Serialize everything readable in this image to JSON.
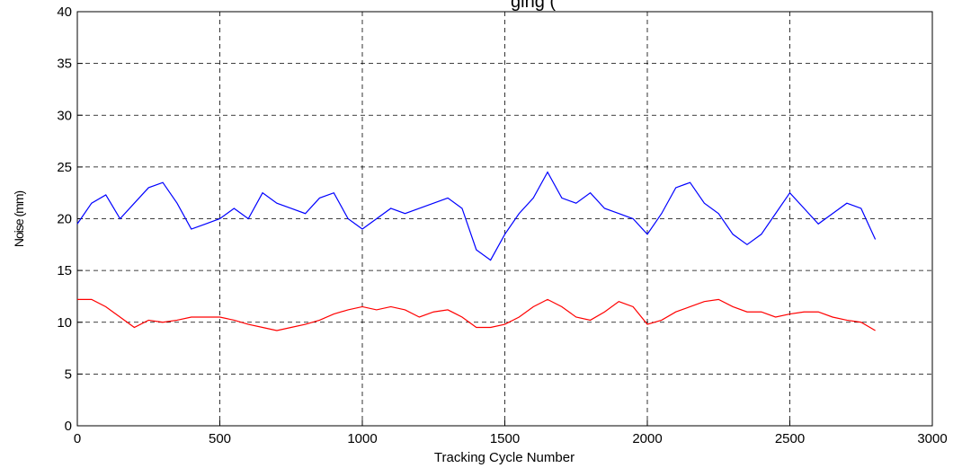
{
  "chart_data": {
    "type": "line",
    "title": "ging (",
    "x_label": "Tracking Cycle Number",
    "y_label": "Noise (mm)",
    "x": [
      0,
      50,
      100,
      150,
      200,
      250,
      300,
      350,
      400,
      450,
      500,
      550,
      600,
      650,
      700,
      750,
      800,
      850,
      900,
      950,
      1000,
      1050,
      1100,
      1150,
      1200,
      1250,
      1300,
      1350,
      1400,
      1450,
      1500,
      1550,
      1600,
      1650,
      1700,
      1750,
      1800,
      1850,
      1900,
      1950,
      2000,
      2050,
      2100,
      2150,
      2200,
      2250,
      2300,
      2350,
      2400,
      2450,
      2500,
      2550,
      2600,
      2650,
      2700,
      2750,
      2800
    ],
    "series": [
      {
        "color": "#0000ff",
        "values": [
          19.5,
          21.5,
          22.3,
          20,
          21.5,
          23,
          23.5,
          21.5,
          19,
          19.5,
          20,
          21,
          20,
          22.5,
          21.5,
          21,
          20.5,
          22,
          22.5,
          20,
          19,
          20,
          21,
          20.5,
          21,
          21.5,
          22,
          21,
          17,
          16,
          18.5,
          20.5,
          22,
          24.5,
          22,
          21.5,
          22.5,
          21,
          20.5,
          20,
          18.5,
          20.5,
          23,
          23.5,
          21.5,
          20.5,
          18.5,
          17.5,
          18.5,
          20.5,
          22.5,
          21,
          19.5,
          20.5,
          21.5,
          21,
          18
        ]
      },
      {
        "color": "#ff0000",
        "values": [
          12.2,
          12.2,
          11.5,
          10.5,
          9.5,
          10.2,
          10,
          10.2,
          10.5,
          10.5,
          10.5,
          10.2,
          9.8,
          9.5,
          9.2,
          9.5,
          9.8,
          10.2,
          10.8,
          11.2,
          11.5,
          11.2,
          11.5,
          11.2,
          10.5,
          11,
          11.2,
          10.5,
          9.5,
          9.5,
          9.8,
          10.5,
          11.5,
          12.2,
          11.5,
          10.5,
          10.2,
          11,
          12,
          11.5,
          9.8,
          10.2,
          11,
          11.5,
          12,
          12.2,
          11.5,
          11,
          11,
          10.5,
          10.8,
          11,
          11,
          10.5,
          10.2,
          10,
          9.2
        ]
      }
    ],
    "xlim": [
      0,
      3000
    ],
    "xticks": [
      0,
      500,
      1000,
      1500,
      2000,
      2500,
      3000
    ],
    "ylim": [
      0,
      40
    ],
    "yticks": [
      0,
      5,
      10,
      15,
      20,
      25,
      30,
      35,
      40
    ],
    "grid": true
  }
}
